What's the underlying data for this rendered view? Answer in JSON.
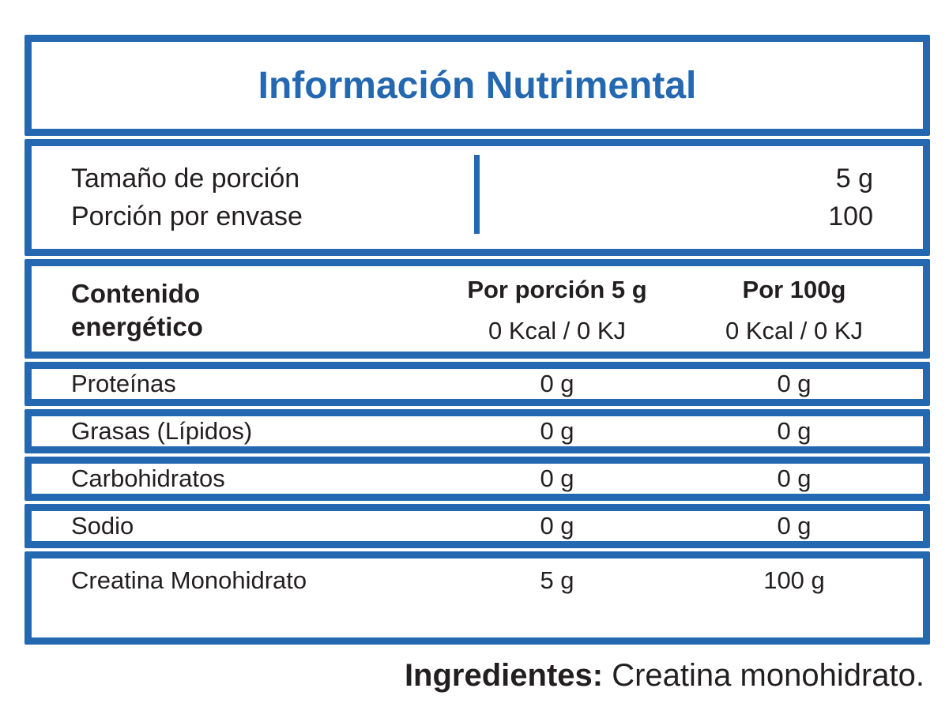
{
  "colors": {
    "accent_blue": "#2368b0",
    "text_dark": "#231f20",
    "background": "#ffffff"
  },
  "title": "Información Nutrimental",
  "serving": {
    "rows": [
      {
        "label": "Tamaño de porción",
        "value": "5 g"
      },
      {
        "label": "Porción por envase",
        "value": "100"
      }
    ]
  },
  "energy": {
    "label_line1": "Contenido",
    "label_line2": "energético",
    "col1_header": "Por porción 5 g",
    "col2_header": "Por 100g",
    "col1_value": "0 Kcal / 0 KJ",
    "col2_value": "0 Kcal / 0 KJ"
  },
  "nutrients": [
    {
      "label": "Proteínas",
      "per_serving": "0 g",
      "per_100g": "0 g"
    },
    {
      "label": "Grasas (Lípidos)",
      "per_serving": "0 g",
      "per_100g": "0 g"
    },
    {
      "label": "Carbohidratos",
      "per_serving": "0 g",
      "per_100g": "0 g"
    },
    {
      "label": "Sodio",
      "per_serving": "0 g",
      "per_100g": "0 g"
    },
    {
      "label": "Creatina Monohidrato",
      "per_serving": "5 g",
      "per_100g": "100 g"
    }
  ],
  "ingredients": {
    "label": "Ingredientes:",
    "value": " Creatina monohidrato."
  }
}
